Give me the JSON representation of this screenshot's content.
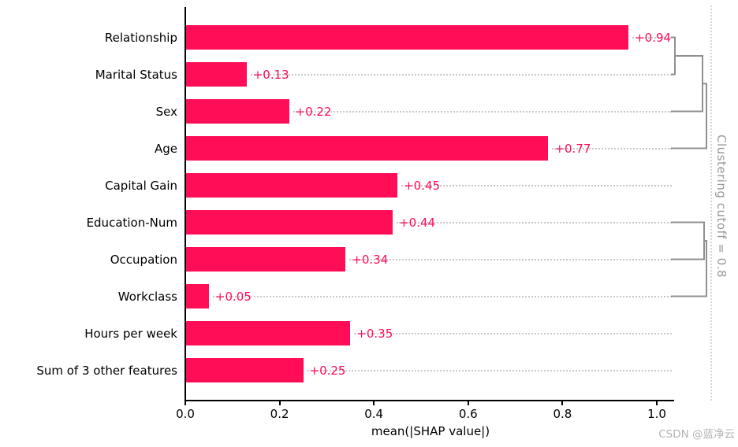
{
  "watermark": {
    "text": "CSDN @蓝净云"
  },
  "chart_data": {
    "type": "bar",
    "orientation": "horizontal",
    "title": "",
    "xlabel": "mean(|SHAP value|)",
    "categories": [
      "Relationship",
      "Marital Status",
      "Sex",
      "Age",
      "Capital Gain",
      "Education-Num",
      "Occupation",
      "Workclass",
      "Hours per week",
      "Sum of 3 other features"
    ],
    "values": [
      0.94,
      0.13,
      0.22,
      0.77,
      0.45,
      0.44,
      0.34,
      0.05,
      0.35,
      0.25
    ],
    "bar_labels": [
      "+0.94",
      "+0.13",
      "+0.22",
      "+0.77",
      "+0.45",
      "+0.44",
      "+0.34",
      "+0.05",
      "+0.35",
      "+0.25"
    ],
    "xticks": [
      "0.0",
      "0.2",
      "0.4",
      "0.6",
      "0.8",
      "1.0"
    ],
    "xlim": [
      0.0,
      1.04
    ],
    "grid": "dotted horizontal leaders from each bar value to dendrogram leaves",
    "legend": null,
    "clustering": {
      "label": "Clustering cutoff = 0.8",
      "cutoff": 0.8,
      "groups": [
        {
          "rows": [
            0,
            1,
            2,
            3
          ],
          "merge_x": [
            856,
            891,
            896
          ]
        },
        {
          "rows": [
            5,
            6,
            7
          ],
          "merge_x": [
            893,
            896
          ]
        }
      ]
    },
    "colors": {
      "bar": "#ff0d57",
      "value_label": "#ff0d57",
      "axis_text": "#000000",
      "dendrogram": "#909090",
      "leader_dots": "#c9c9c9",
      "cutoff_line": "#d6d6d6",
      "cutoff_text": "#999999",
      "watermark": "#b3b3b3"
    }
  }
}
